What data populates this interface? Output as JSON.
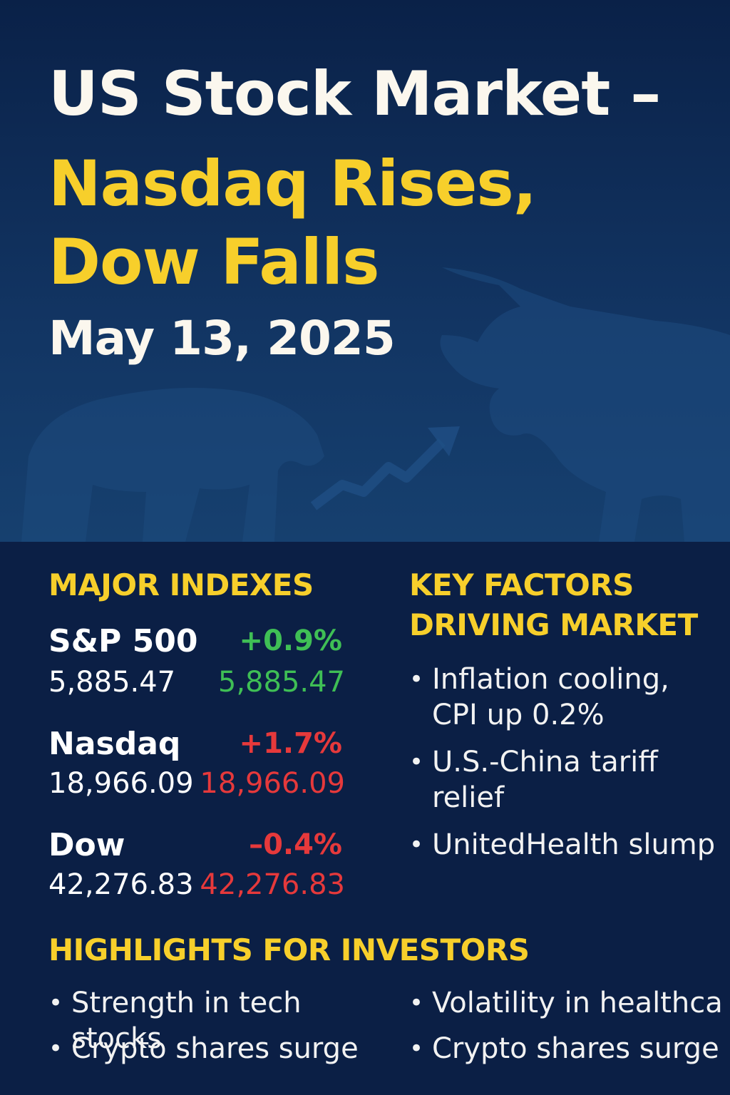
{
  "headline": {
    "line1": "US Stock Market –",
    "line2": "Nasdaq Rises,",
    "line3": "Dow Falls",
    "date": "May 13, 2025"
  },
  "major_indexes": {
    "title": "MAJOR INDEXES",
    "items": [
      {
        "name": "S&P 500",
        "value": "5,885.47",
        "change": "+0.9%",
        "value_colored": "5,885.47",
        "color": "#3fbf55"
      },
      {
        "name": "Nasdaq",
        "value": "18,966.09",
        "change": "+1.7%",
        "value_colored": "18,966.09",
        "color": "#e6393b"
      },
      {
        "name": "Dow",
        "value": "42,276.83",
        "change": "–0.4%",
        "value_colored": "42,276.83",
        "color": "#e6393b"
      }
    ]
  },
  "key_factors": {
    "title_line1": "KEY FACTORS",
    "title_line2": "DRIVING MARKET",
    "items": [
      {
        "line1": "Inflation cooling,",
        "line2": "CPI up 0.2%"
      },
      {
        "line1": "U.S.-China tariff",
        "line2": "relief"
      },
      {
        "line1": "UnitedHealth slump",
        "line2": ""
      }
    ]
  },
  "highlights": {
    "title": "HIGHLIGHTS FOR INVESTORS",
    "items": [
      "Strength in tech stocks",
      "Volatility in healthcare",
      "Crypto shares surge",
      "Crypto shares surge"
    ]
  },
  "colors": {
    "accent": "#f7cf2b",
    "positive": "#3fbf55",
    "negative": "#e6393b",
    "background": "#0b1f45"
  },
  "icons": {
    "bear": "bear-silhouette",
    "bull": "bull-silhouette",
    "trend": "trend-arrow-icon",
    "bullet": "•"
  }
}
